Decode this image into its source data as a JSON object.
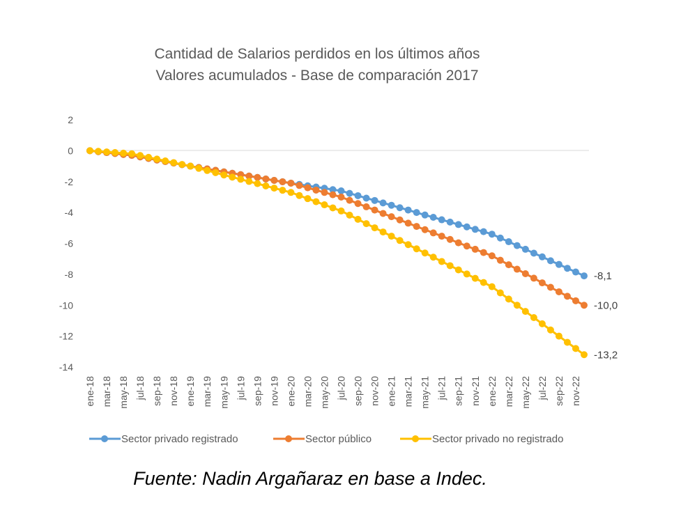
{
  "chart_data": {
    "type": "line",
    "title": "Cantidad de Salarios perdidos en los últimos años",
    "subtitle": "Valores acumulados - Base de comparación 2017",
    "xlabel": "",
    "ylabel": "",
    "ylim": [
      -14,
      2
    ],
    "yticks": [
      2,
      0,
      -2,
      -4,
      -6,
      -8,
      -10,
      -12,
      -14
    ],
    "grid": false,
    "legend": "bottom",
    "x_ticklabels": [
      "ene-18",
      "mar-18",
      "may-18",
      "jul-18",
      "sep-18",
      "nov-18",
      "ene-19",
      "mar-19",
      "may-19",
      "jul-19",
      "sep-19",
      "nov-19",
      "ene-20",
      "mar-20",
      "may-20",
      "jul-20",
      "sep-20",
      "nov-20",
      "ene-21",
      "mar-21",
      "may-21",
      "jul-21",
      "sep-21",
      "nov-21",
      "ene-22",
      "mar-22",
      "may-22",
      "jul-22",
      "sep-22",
      "nov-22"
    ],
    "series": [
      {
        "name": "Sector privado registrado",
        "color": "#5B9BD5",
        "end_label": "-8,1",
        "anchors": [
          [
            0,
            0
          ],
          [
            5,
            -0.3
          ],
          [
            12,
            -1.0
          ],
          [
            24,
            -2.1
          ],
          [
            30,
            -2.6
          ],
          [
            48,
            -5.4
          ],
          [
            59,
            -8.1
          ]
        ]
      },
      {
        "name": "Sector público",
        "color": "#ED7D31",
        "end_label": "-10,0",
        "anchors": [
          [
            0,
            0
          ],
          [
            5,
            -0.3
          ],
          [
            12,
            -1.0
          ],
          [
            24,
            -2.1
          ],
          [
            30,
            -3.0
          ],
          [
            48,
            -6.8
          ],
          [
            59,
            -10.0
          ]
        ]
      },
      {
        "name": "Sector privado no registrado",
        "color": "#FFC000",
        "end_label": "-13,2",
        "anchors": [
          [
            0,
            0
          ],
          [
            5,
            -0.2
          ],
          [
            12,
            -1.0
          ],
          [
            24,
            -2.7
          ],
          [
            30,
            -3.9
          ],
          [
            48,
            -8.8
          ],
          [
            59,
            -13.2
          ]
        ]
      }
    ],
    "source": "Fuente: Nadin Argañaraz en base a Indec."
  }
}
